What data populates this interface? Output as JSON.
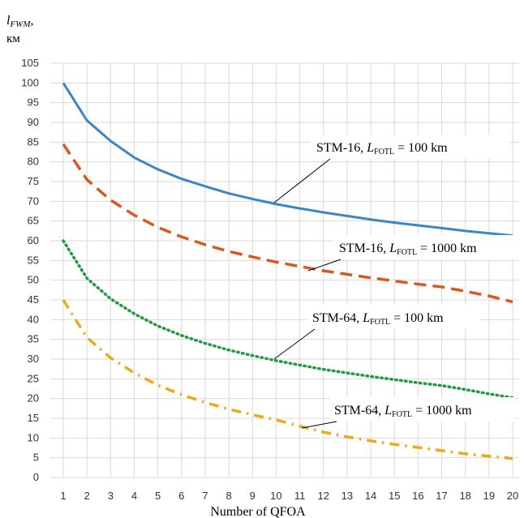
{
  "chart_data": {
    "type": "line",
    "ylabel": {
      "var": "l",
      "sub": "FWM",
      "suffix": ",",
      "unit": "км"
    },
    "xlabel": "Number of QFOA",
    "xlim": [
      1,
      20
    ],
    "ylim": [
      0,
      105
    ],
    "ytick_step": 5,
    "grid": true,
    "x": [
      1,
      2,
      3,
      4,
      5,
      6,
      7,
      8,
      9,
      10,
      11,
      12,
      13,
      14,
      15,
      16,
      17,
      18,
      19,
      20
    ],
    "series": [
      {
        "id": "stm16-100",
        "color": "#3a86c8",
        "style": "solid",
        "label": {
          "pre": "STM-16, ",
          "var": "L",
          "sub": "FOTL",
          "post": " = 100 km"
        },
        "values": [
          100,
          90.5,
          85.3,
          81.1,
          78.1,
          75.7,
          73.8,
          72.0,
          70.6,
          69.3,
          68.2,
          67.2,
          66.3,
          65.4,
          64.6,
          63.9,
          63.2,
          62.5,
          61.9,
          61.3
        ]
      },
      {
        "id": "stm16-1000",
        "color": "#d55a1e",
        "style": "dashed",
        "label": {
          "pre": "STM-16, ",
          "var": "L",
          "sub": "FOTL",
          "post": " = 1000 km"
        },
        "values": [
          84.5,
          75.5,
          70.3,
          66.5,
          63.4,
          61.0,
          59.0,
          57.3,
          55.9,
          54.6,
          53.5,
          52.4,
          51.5,
          50.6,
          49.8,
          49.0,
          48.3,
          47.2,
          46.0,
          44.5
        ]
      },
      {
        "id": "stm64-100",
        "color": "#1f9a3f",
        "style": "dotted",
        "label": {
          "pre": "STM-64, ",
          "var": "L",
          "sub": "FOTL",
          "post": " = 100 km"
        },
        "values": [
          60,
          50.5,
          45.3,
          41.5,
          38.4,
          36.0,
          34.0,
          32.3,
          30.9,
          29.6,
          28.5,
          27.4,
          26.5,
          25.6,
          24.8,
          24.0,
          23.3,
          22.3,
          21.2,
          20.2
        ]
      },
      {
        "id": "stm64-1000",
        "color": "#e6ad1a",
        "style": "dashdot",
        "label": {
          "pre": "STM-64, ",
          "var": "L",
          "sub": "FOTL",
          "post": " = 1000 km"
        },
        "values": [
          45,
          35.5,
          30.3,
          26.5,
          23.4,
          21.0,
          19.0,
          17.3,
          15.9,
          14.6,
          13.0,
          11.5,
          10.3,
          9.3,
          8.4,
          7.6,
          6.8,
          6.0,
          5.4,
          4.8
        ]
      }
    ]
  }
}
